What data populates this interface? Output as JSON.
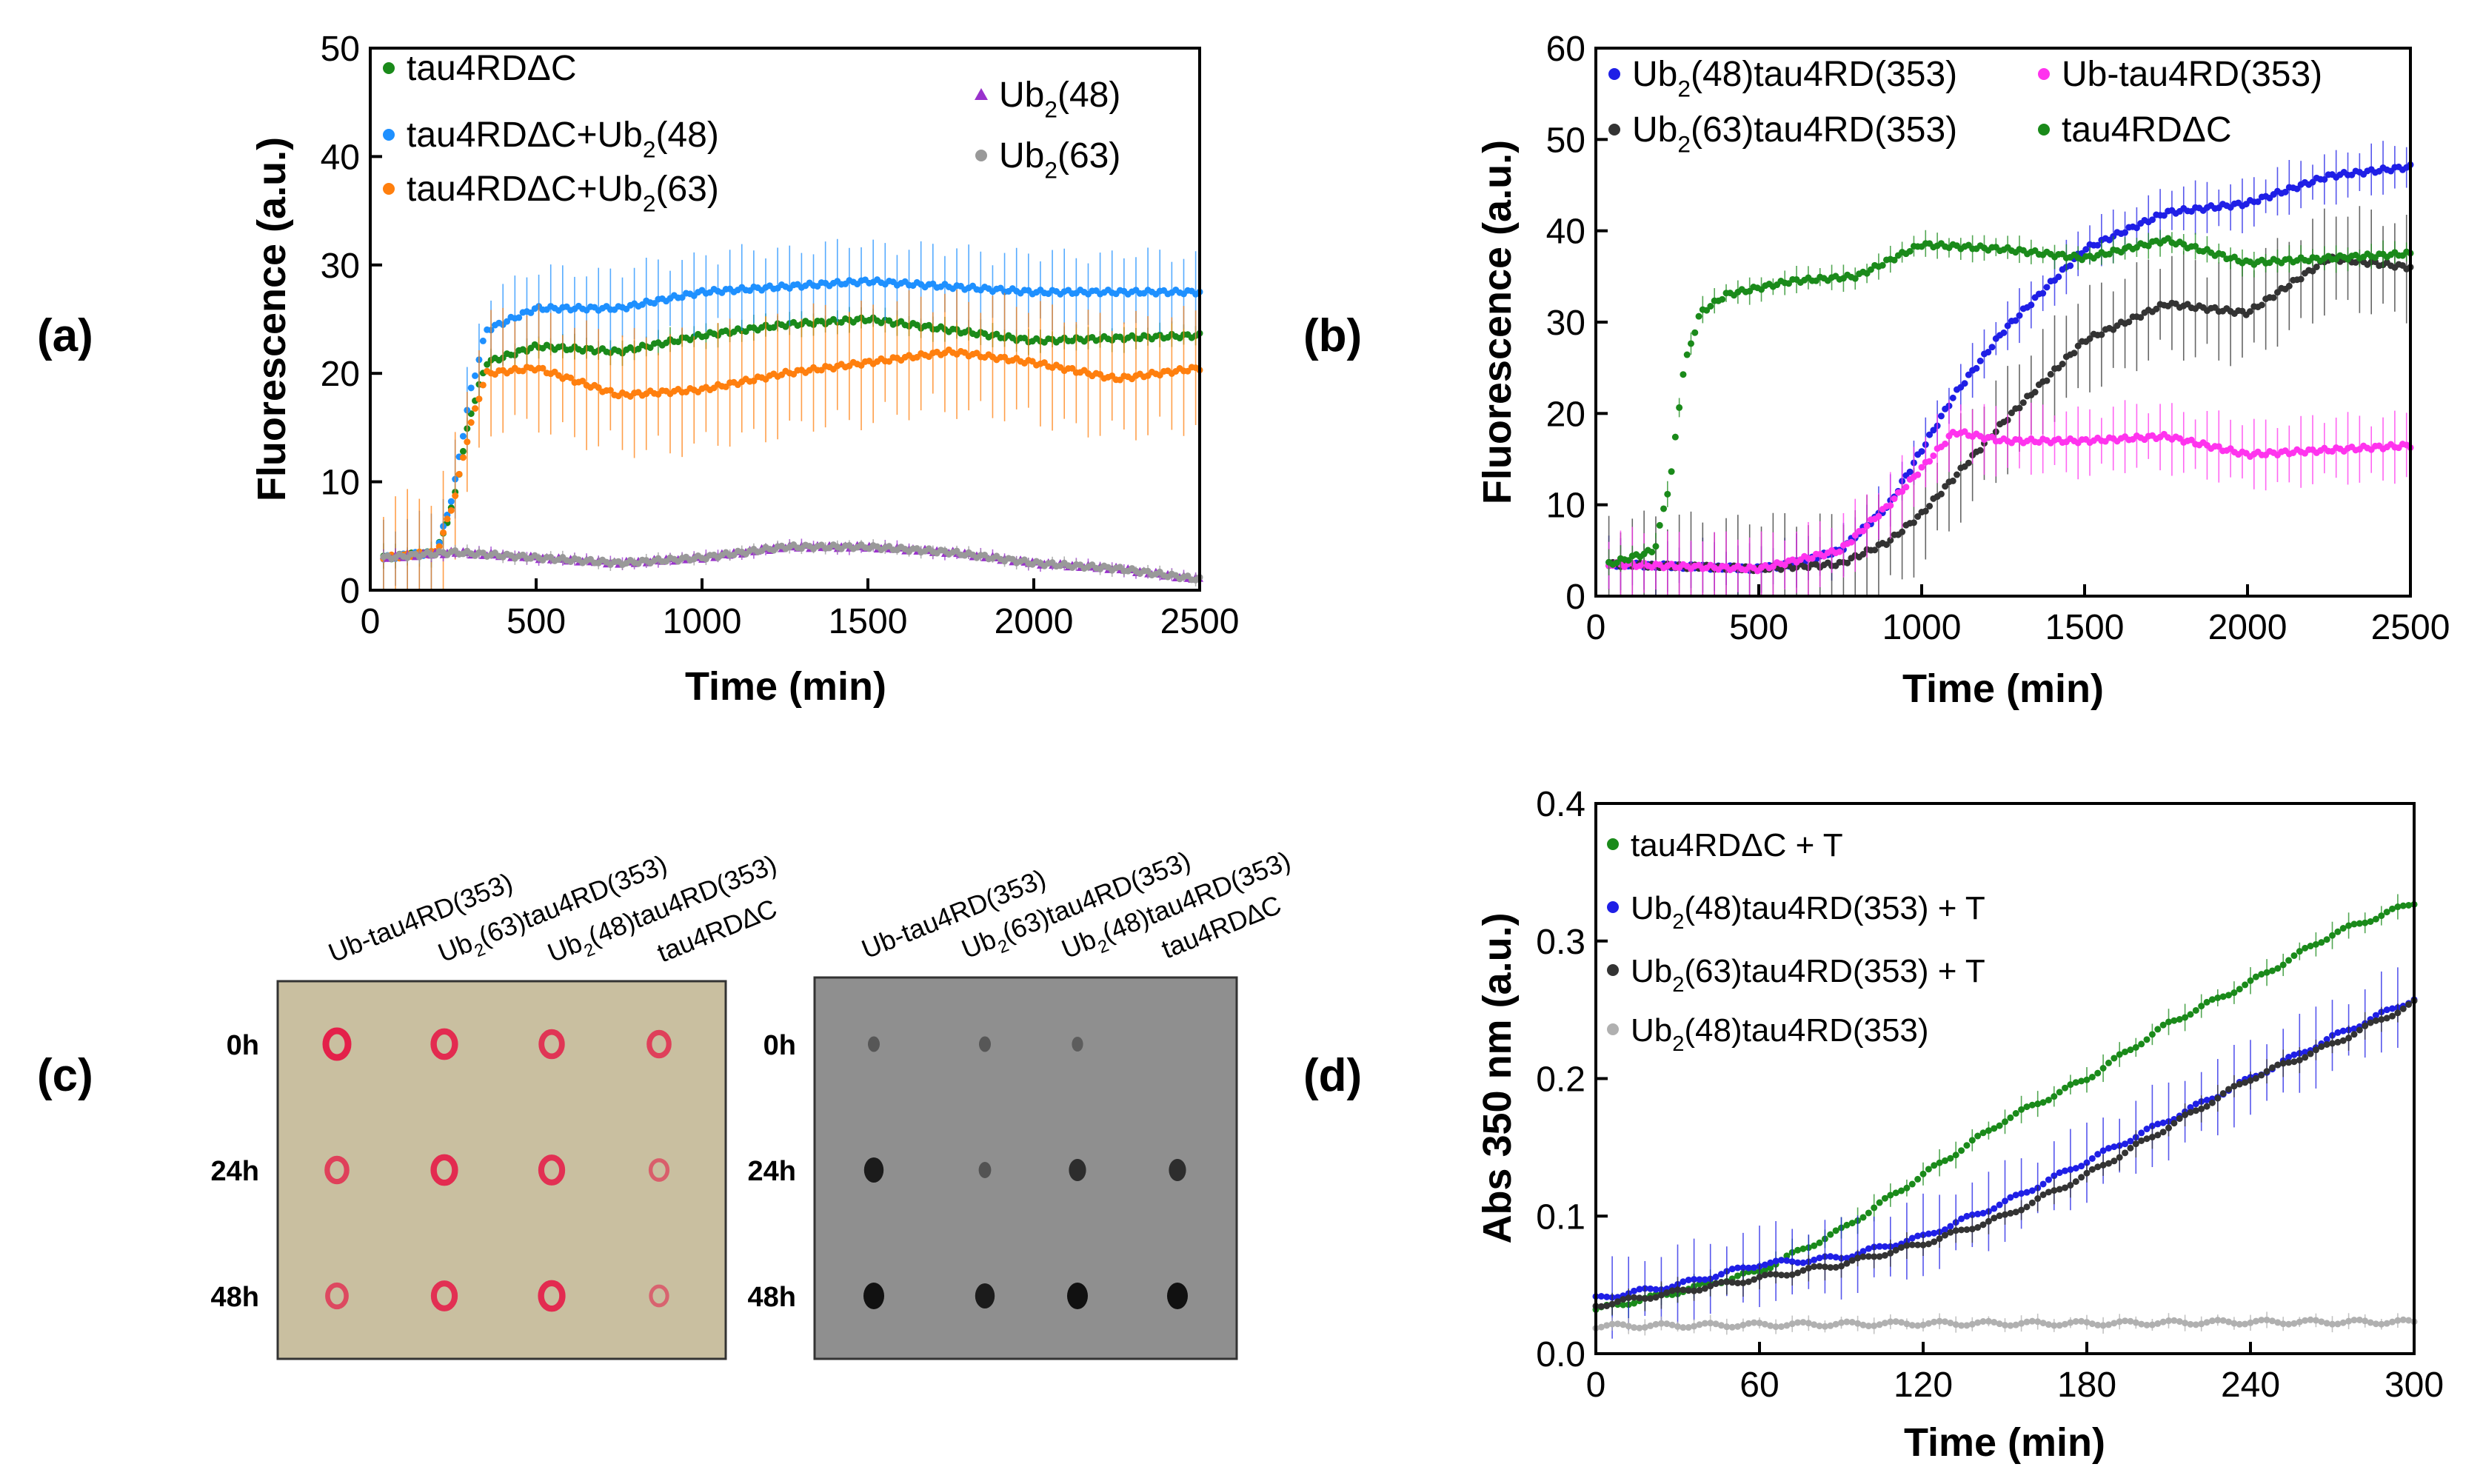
{
  "panel_labels": {
    "a": "(a)",
    "b": "(b)",
    "c": "(c)",
    "d": "(d)"
  },
  "colors": {
    "green": "#1a8a1a",
    "blue_light": "#1e90ff",
    "orange": "#ff7f0e",
    "purple": "#9932cc",
    "gray": "#999999",
    "blue_dark": "#1f1fe6",
    "magenta": "#ff33ee",
    "black": "#333333",
    "light_gray": "#b0b0b0",
    "membrane": "#c9bfa0",
    "blot": "#8f8f8f",
    "dot_red": "#e4204a",
    "dot_black": "#111111"
  },
  "chart_data": [
    {
      "id": "a",
      "type": "scatter",
      "xlabel": "Time  (min)",
      "ylabel": "Fluorescence (a.u.)",
      "xlim": [
        0,
        2500
      ],
      "ylim": [
        0,
        50
      ],
      "xticks": [
        0,
        500,
        1000,
        1500,
        2000,
        2500
      ],
      "yticks": [
        0,
        10,
        20,
        30,
        40,
        50
      ],
      "series": [
        {
          "name": "tau4RDΔC",
          "name_main": "tau4RDΔC",
          "sub": "",
          "tail": "",
          "color": "green",
          "marker": "circle",
          "err": 1.2,
          "x": [
            40,
            200,
            250,
            300,
            350,
            500,
            750,
            1000,
            1250,
            1500,
            2000,
            2500
          ],
          "y": [
            3,
            3.5,
            8,
            16,
            21,
            22.5,
            22,
            23.5,
            24.5,
            25,
            23,
            23.5
          ]
        },
        {
          "name": "tau4RDΔC+Ub2(48)",
          "name_main": "tau4RDΔC+Ub",
          "sub": "2",
          "tail": "(48)",
          "color": "blue_light",
          "marker": "circle",
          "err": 4,
          "x": [
            40,
            200,
            250,
            300,
            350,
            500,
            750,
            1000,
            1250,
            1500,
            2000,
            2500
          ],
          "y": [
            3,
            3.5,
            9,
            18,
            24,
            26,
            26,
            27.5,
            28,
            28.5,
            27.5,
            27.5
          ]
        },
        {
          "name": "tau4RDΔC+Ub2(63)",
          "name_main": "tau4RDΔC+Ub",
          "sub": "2",
          "tail": "(63)",
          "color": "orange",
          "marker": "circle",
          "err": 6,
          "x": [
            40,
            200,
            250,
            300,
            350,
            500,
            750,
            1000,
            1250,
            1500,
            1750,
            2000,
            2250,
            2500
          ],
          "y": [
            3,
            3.5,
            8,
            15,
            20,
            20.5,
            18,
            18.5,
            20,
            21,
            22,
            21,
            19.5,
            20.5
          ]
        },
        {
          "name": "Ub2(48)",
          "name_main": "Ub",
          "sub": "2",
          "tail": "(48)",
          "color": "purple",
          "marker": "triangle",
          "err": 0.6,
          "x": [
            40,
            250,
            500,
            750,
            1000,
            1250,
            1500,
            1750,
            2000,
            2250,
            2500
          ],
          "y": [
            3,
            3.5,
            3,
            2.5,
            3,
            4,
            4,
            3.5,
            2.5,
            2,
            1
          ]
        },
        {
          "name": "Ub2(63)",
          "name_main": "Ub",
          "sub": "2",
          "tail": "(63)",
          "color": "gray",
          "marker": "circle",
          "err": 0.6,
          "x": [
            40,
            250,
            500,
            750,
            1000,
            1250,
            1500,
            1750,
            2000,
            2250,
            2500
          ],
          "y": [
            3,
            3.5,
            3,
            2.5,
            3,
            4,
            4,
            3.5,
            2.5,
            2,
            1
          ]
        }
      ]
    },
    {
      "id": "b",
      "type": "scatter",
      "xlabel": "Time  (min)",
      "ylabel": "Fluorescence (a.u.)",
      "xlim": [
        0,
        2500
      ],
      "ylim": [
        0,
        60
      ],
      "xticks": [
        0,
        500,
        1000,
        1500,
        2000,
        2500
      ],
      "yticks": [
        0,
        10,
        20,
        30,
        40,
        50,
        60
      ],
      "series": [
        {
          "name": "Ub2(48)tau4RD(353)",
          "name_main": "Ub",
          "sub": "2",
          "tail": "(48)tau4RD(353)",
          "color": "blue_dark",
          "marker": "circle",
          "err": 3,
          "x": [
            40,
            500,
            600,
            750,
            900,
            1000,
            1100,
            1250,
            1500,
            1750,
            2000,
            2250,
            2500
          ],
          "y": [
            3.5,
            3,
            3.5,
            5,
            10,
            16,
            22,
            29,
            38,
            42,
            43,
            46,
            47
          ]
        },
        {
          "name": "Ub2(63)tau4RD(353)",
          "name_main": "Ub",
          "sub": "2",
          "tail": "(63)tau4RD(353)",
          "color": "black",
          "marker": "circle",
          "err": 6,
          "x": [
            40,
            500,
            750,
            900,
            1000,
            1100,
            1250,
            1500,
            1750,
            2000,
            2250,
            2500
          ],
          "y": [
            3.5,
            3,
            3.5,
            6,
            9,
            13,
            19,
            28,
            32,
            31,
            37,
            36
          ]
        },
        {
          "name": "Ub-tau4RD(353)",
          "name_main": "Ub-tau4RD(353)",
          "sub": "",
          "tail": "",
          "color": "magenta",
          "marker": "circle",
          "err": 4,
          "x": [
            40,
            500,
            750,
            900,
            1000,
            1100,
            1250,
            1500,
            1750,
            2000,
            2250,
            2500
          ],
          "y": [
            3.5,
            3,
            5,
            10,
            14,
            18,
            17,
            17,
            17.5,
            15.5,
            16,
            16.5
          ]
        },
        {
          "name": "tau4RDΔC",
          "name_main": "tau4RDΔC",
          "sub": "",
          "tail": "",
          "color": "green",
          "marker": "circle",
          "err": 1.5,
          "x": [
            40,
            180,
            230,
            270,
            320,
            400,
            600,
            800,
            1000,
            1250,
            1500,
            1750,
            2000,
            2250,
            2500
          ],
          "y": [
            3.5,
            5,
            13,
            25,
            31,
            33,
            34.5,
            35,
            38.5,
            38,
            37,
            39,
            36.5,
            37,
            37.5
          ]
        }
      ]
    },
    {
      "id": "d",
      "type": "scatter",
      "xlabel": "Time (min)",
      "ylabel": "Abs 350 nm (a.u.)",
      "xlim": [
        0,
        300
      ],
      "ylim": [
        0,
        0.4
      ],
      "xticks": [
        0,
        60,
        120,
        180,
        240,
        300
      ],
      "yticks": [
        0.0,
        0.1,
        0.2,
        0.3,
        0.4
      ],
      "series": [
        {
          "name": "tau4RDΔC  + T",
          "name_main": "tau4RDΔC  + T",
          "sub": "",
          "tail": "",
          "color": "green",
          "marker": "circle",
          "err": 0.01,
          "x": [
            0,
            30,
            60,
            90,
            120,
            150,
            180,
            210,
            240,
            270,
            300
          ],
          "y": [
            0.032,
            0.045,
            0.06,
            0.09,
            0.13,
            0.17,
            0.2,
            0.24,
            0.27,
            0.305,
            0.328
          ]
        },
        {
          "name": "Ub2(48)tau4RD(353) + T",
          "name_main": "Ub",
          "sub": "2",
          "tail": "(48)tau4RD(353) + T",
          "color": "blue_dark",
          "marker": "circle",
          "err": 0.03,
          "x": [
            0,
            30,
            60,
            90,
            120,
            150,
            180,
            210,
            240,
            270,
            300
          ],
          "y": [
            0.04,
            0.05,
            0.065,
            0.07,
            0.085,
            0.11,
            0.14,
            0.17,
            0.2,
            0.23,
            0.258
          ]
        },
        {
          "name": "Ub2(63)tau4RD(353) + T",
          "name_main": "Ub",
          "sub": "2",
          "tail": "(63)tau4RD(353) + T",
          "color": "black",
          "marker": "circle",
          "err": 0.01,
          "x": [
            0,
            30,
            60,
            90,
            120,
            150,
            180,
            210,
            240,
            270,
            300
          ],
          "y": [
            0.035,
            0.045,
            0.055,
            0.065,
            0.08,
            0.1,
            0.13,
            0.165,
            0.2,
            0.225,
            0.255
          ]
        },
        {
          "name": "Ub2(48)tau4RD(353)",
          "name_main": "Ub",
          "sub": "2",
          "tail": "(48)tau4RD(353)",
          "color": "light_gray",
          "marker": "circle",
          "err": 0.006,
          "x": [
            0,
            60,
            120,
            180,
            240,
            300
          ],
          "y": [
            0.02,
            0.021,
            0.022,
            0.022,
            0.023,
            0.023
          ]
        }
      ]
    }
  ],
  "dot_blots": {
    "columns": [
      {
        "main": "Ub-tau4RD(353)",
        "sub": "",
        "tail": ""
      },
      {
        "main": "Ub",
        "sub": "2",
        "tail": "(63)tau4RD(353)"
      },
      {
        "main": "Ub",
        "sub": "2",
        "tail": "(48)tau4RD(353)"
      },
      {
        "main": "tau4RD∆C",
        "sub": "",
        "tail": ""
      }
    ],
    "rows": [
      "0h",
      "24h",
      "48h"
    ],
    "left_intensity": [
      [
        1,
        0.9,
        0.8,
        0.7
      ],
      [
        0.7,
        0.9,
        0.85,
        0.4
      ],
      [
        0.6,
        0.85,
        0.9,
        0.35
      ]
    ],
    "right_intensity": [
      [
        0.25,
        0.25,
        0.2,
        0
      ],
      [
        0.9,
        0.3,
        0.7,
        0.7
      ],
      [
        1,
        0.9,
        1,
        1
      ]
    ]
  }
}
